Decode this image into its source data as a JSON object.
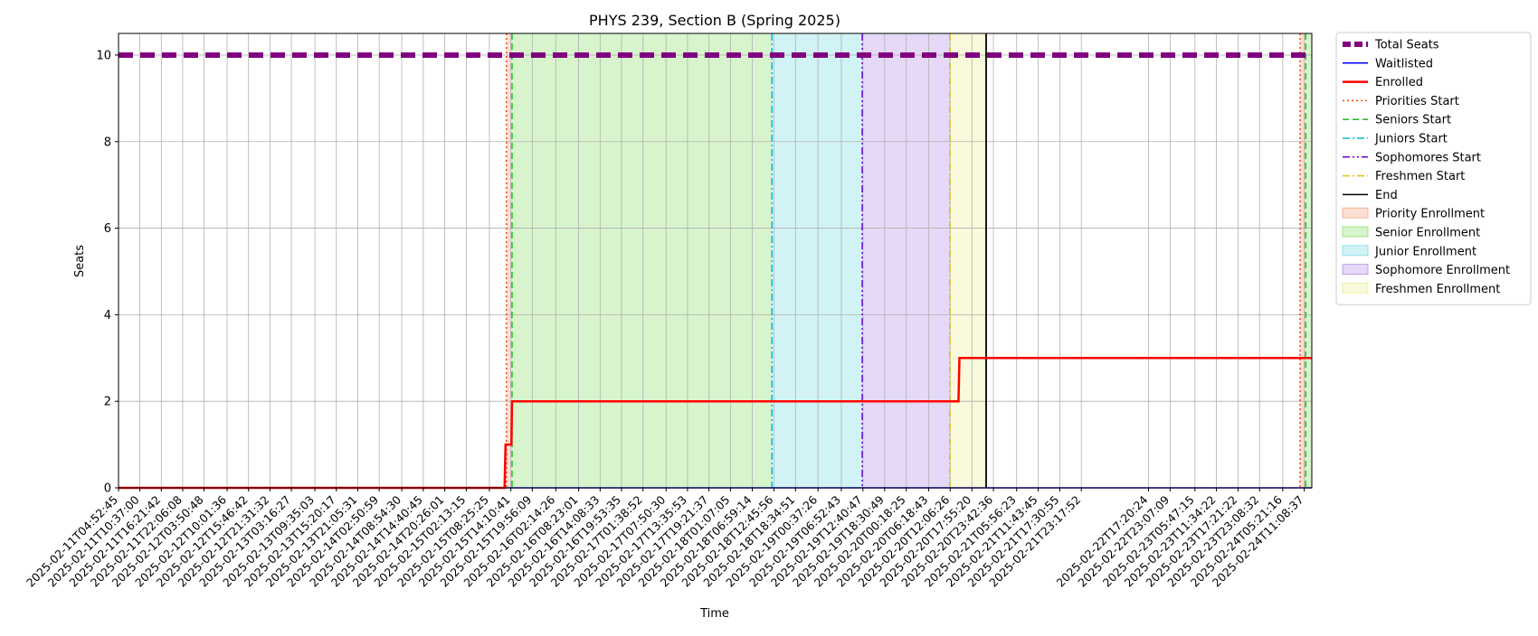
{
  "chart_data": {
    "type": "line",
    "title": "PHYS 239, Section B (Spring 2025)",
    "xlabel": "Time",
    "ylabel": "Seats",
    "ylim": [
      0,
      10.5
    ],
    "yticks": [
      0,
      2,
      4,
      6,
      8,
      10
    ],
    "xlim": [
      "2025-02-11T04:52:45",
      "2025-02-24T13:10:00"
    ],
    "grid": true,
    "legend_position": "outside-right-top",
    "xticks": [
      "2025-02-11T04:52:45",
      "2025-02-11T10:37:00",
      "2025-02-11T16:21:42",
      "2025-02-11T22:06:08",
      "2025-02-12T03:50:48",
      "2025-02-12T10:01:36",
      "2025-02-12T15:46:42",
      "2025-02-12T21:31:32",
      "2025-02-13T03:16:27",
      "2025-02-13T09:35:03",
      "2025-02-13T15:20:17",
      "2025-02-13T21:05:31",
      "2025-02-14T02:50:59",
      "2025-02-14T08:54:30",
      "2025-02-14T14:40:45",
      "2025-02-14T20:26:01",
      "2025-02-15T02:13:15",
      "2025-02-15T08:25:25",
      "2025-02-15T14:10:41",
      "2025-02-15T19:56:09",
      "2025-02-16T02:14:26",
      "2025-02-16T08:23:01",
      "2025-02-16T14:08:33",
      "2025-02-16T19:53:35",
      "2025-02-17T01:38:52",
      "2025-02-17T07:50:30",
      "2025-02-17T13:35:53",
      "2025-02-17T19:21:37",
      "2025-02-18T01:07:05",
      "2025-02-18T06:59:14",
      "2025-02-18T12:45:56",
      "2025-02-18T18:34:51",
      "2025-02-19T00:37:26",
      "2025-02-19T06:52:43",
      "2025-02-19T12:40:47",
      "2025-02-19T18:30:49",
      "2025-02-20T00:18:25",
      "2025-02-20T06:18:43",
      "2025-02-20T12:06:26",
      "2025-02-20T17:55:20",
      "2025-02-20T23:42:36",
      "2025-02-21T05:56:23",
      "2025-02-21T11:43:45",
      "2025-02-21T17:30:55",
      "2025-02-21T23:17:52",
      "2025-02-22T17:20:24",
      "2025-02-22T23:07:09",
      "2025-02-23T05:47:15",
      "2025-02-23T11:34:22",
      "2025-02-23T17:21:22",
      "2025-02-23T23:08:32",
      "2025-02-24T05:21:16",
      "2025-02-24T11:08:37"
    ],
    "series": [
      {
        "name": "Total Seats",
        "color": "#800080",
        "style": "dashed-thick",
        "points": [
          [
            "2025-02-11T04:52:45",
            10
          ],
          [
            "2025-02-24T13:10:00",
            10
          ]
        ]
      },
      {
        "name": "Waitlisted",
        "color": "#0000ff",
        "style": "solid",
        "points": [
          [
            "2025-02-11T04:52:45",
            0
          ],
          [
            "2025-02-24T13:10:00",
            0
          ]
        ]
      },
      {
        "name": "Enrolled",
        "color": "#ff0000",
        "style": "solid-thick",
        "points": [
          [
            "2025-02-11T04:52:45",
            0
          ],
          [
            "2025-02-15T12:30:00",
            0
          ],
          [
            "2025-02-15T12:45:00",
            1
          ],
          [
            "2025-02-15T14:20:00",
            1
          ],
          [
            "2025-02-15T14:30:00",
            2
          ],
          [
            "2025-02-20T14:20:00",
            2
          ],
          [
            "2025-02-20T14:35:00",
            3
          ],
          [
            "2025-02-24T13:10:00",
            3
          ]
        ]
      }
    ],
    "vlines": [
      {
        "name": "Priorities Start",
        "color": "#ff4500",
        "style": "dotted",
        "x": [
          "2025-02-15T13:00:00",
          "2025-02-24T10:00:00"
        ]
      },
      {
        "name": "Seniors Start",
        "color": "#22bb22",
        "style": "dashed",
        "x": [
          "2025-02-15T14:30:00",
          "2025-02-24T11:30:00"
        ]
      },
      {
        "name": "Juniors Start",
        "color": "#00bbcc",
        "style": "dashdot",
        "x": [
          "2025-02-18T12:15:00"
        ]
      },
      {
        "name": "Sophomores Start",
        "color": "#6a00d9",
        "style": "dashdotdot",
        "x": [
          "2025-02-19T12:30:00"
        ]
      },
      {
        "name": "Freshmen Start",
        "color": "#e0c000",
        "style": "dashdot",
        "x": [
          "2025-02-20T12:00:00"
        ]
      },
      {
        "name": "End",
        "color": "#000000",
        "style": "solid",
        "x": [
          "2025-02-20T21:45:00"
        ]
      }
    ],
    "spans": [
      {
        "name": "Priority Enrollment",
        "color": "#f4a582",
        "ranges": [
          [
            "2025-02-15T13:00:00",
            "2025-02-15T14:30:00"
          ],
          [
            "2025-02-24T10:00:00",
            "2025-02-24T11:30:00"
          ]
        ]
      },
      {
        "name": "Senior Enrollment",
        "color": "#90e070",
        "ranges": [
          [
            "2025-02-15T14:30:00",
            "2025-02-18T12:15:00"
          ],
          [
            "2025-02-24T11:30:00",
            "2025-02-24T13:10:00"
          ]
        ]
      },
      {
        "name": "Junior Enrollment",
        "color": "#7fdde5",
        "ranges": [
          [
            "2025-02-18T12:15:00",
            "2025-02-19T12:30:00"
          ]
        ]
      },
      {
        "name": "Sophomore Enrollment",
        "color": "#b592e8",
        "ranges": [
          [
            "2025-02-19T12:30:00",
            "2025-02-20T12:00:00"
          ]
        ]
      },
      {
        "name": "Freshmen Enrollment",
        "color": "#eeee99",
        "ranges": [
          [
            "2025-02-20T12:00:00",
            "2025-02-20T21:45:00"
          ]
        ]
      }
    ]
  }
}
